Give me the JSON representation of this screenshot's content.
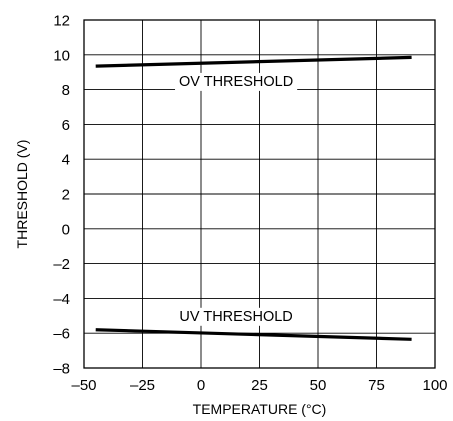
{
  "chart_data": {
    "type": "line",
    "xlabel": "TEMPERATURE (°C)",
    "ylabel": "THRESHOLD (V)",
    "xlim": [
      -50,
      100
    ],
    "ylim": [
      -8,
      12
    ],
    "x_ticks": [
      -50,
      -25,
      0,
      25,
      50,
      75,
      100
    ],
    "y_ticks": [
      -8,
      -6,
      -4,
      -2,
      0,
      2,
      4,
      6,
      8,
      10,
      12
    ],
    "x_tick_labels": [
      "–50",
      "–25",
      "0",
      "25",
      "50",
      "75",
      "100"
    ],
    "y_tick_labels": [
      "–8",
      "–6",
      "–4",
      "–2",
      "0",
      "2",
      "4",
      "6",
      "8",
      "10",
      "12"
    ],
    "grid": true,
    "legend": "none",
    "series": [
      {
        "name": "OV THRESHOLD",
        "x": [
          -45,
          90
        ],
        "y": [
          9.35,
          9.85
        ]
      },
      {
        "name": "UV THRESHOLD",
        "x": [
          -45,
          90
        ],
        "y": [
          -5.8,
          -6.35
        ]
      }
    ],
    "annotations": [
      {
        "text": "OV THRESHOLD",
        "x": 15,
        "y": 8.5
      },
      {
        "text": "UV THRESHOLD",
        "x": 15,
        "y": -5.0
      }
    ]
  }
}
